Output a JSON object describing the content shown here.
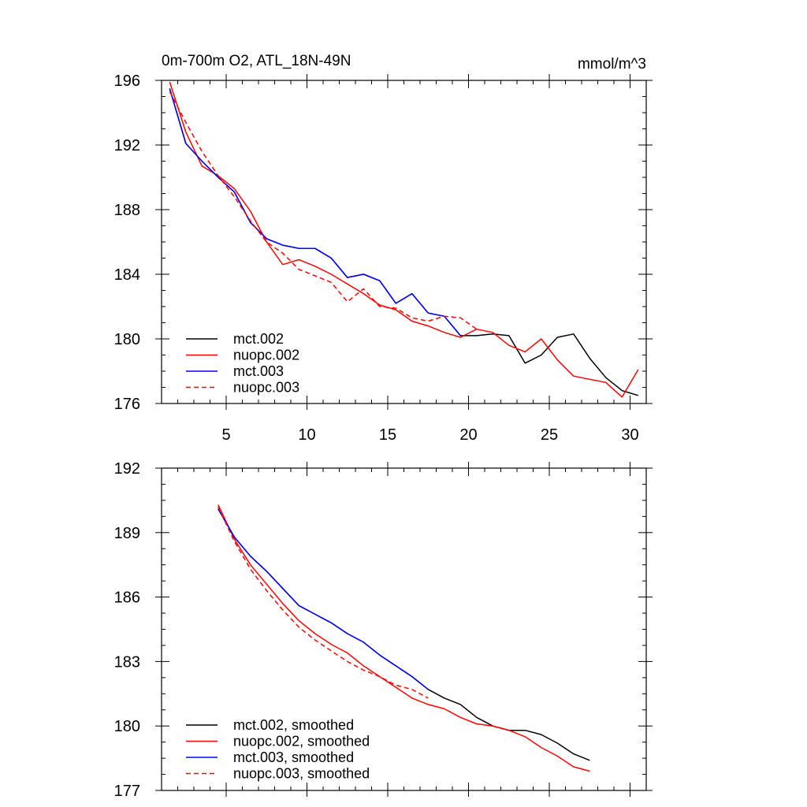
{
  "figure": {
    "title_left": "0m-700m O2, ATL_18N-49N",
    "title_right": "mmol/m^3"
  },
  "chart_data": [
    {
      "type": "line",
      "title": "",
      "xlabel": "",
      "ylabel": "",
      "xlim": [
        1,
        31
      ],
      "ylim": [
        176,
        196
      ],
      "xticks": [
        5,
        10,
        15,
        20,
        25,
        30
      ],
      "yticks": [
        176,
        180,
        184,
        188,
        192,
        196
      ],
      "legend_position": "bottom-left",
      "series": [
        {
          "name": "mct.002",
          "color": "#000000",
          "dash": "solid",
          "x": [
            1.5,
            2.5,
            3.5,
            4.5,
            5.5,
            6.5,
            7.5,
            8.5,
            9.5,
            10.5,
            11.5,
            12.5,
            13.5,
            14.5,
            15.5,
            16.5,
            17.5,
            18.5,
            19.5,
            20.5,
            21.5,
            22.5,
            23.5,
            24.5,
            25.5,
            26.5,
            27.5,
            28.5,
            29.5,
            30.5
          ],
          "y": [
            195.5,
            192.1,
            191.0,
            190.0,
            189.1,
            187.2,
            186.2,
            185.8,
            185.6,
            185.6,
            185.0,
            183.8,
            184.0,
            183.6,
            182.2,
            182.8,
            181.6,
            181.4,
            180.2,
            180.2,
            180.3,
            180.2,
            178.5,
            179.0,
            180.1,
            180.3,
            178.8,
            177.6,
            176.8,
            176.5
          ]
        },
        {
          "name": "nuopc.002",
          "color": "#ff0000",
          "dash": "solid",
          "x": [
            1.5,
            2.5,
            3.5,
            4.5,
            5.5,
            6.5,
            7.5,
            8.5,
            9.5,
            10.5,
            11.5,
            12.5,
            13.5,
            14.5,
            15.5,
            16.5,
            17.5,
            18.5,
            19.5,
            20.5,
            21.5,
            22.5,
            23.5,
            24.5,
            25.5,
            26.5,
            27.5,
            28.5,
            29.5,
            30.5
          ],
          "y": [
            195.9,
            192.8,
            190.7,
            190.1,
            189.3,
            187.9,
            186.0,
            184.6,
            184.9,
            184.5,
            184.0,
            183.4,
            182.8,
            182.1,
            181.8,
            181.1,
            180.8,
            180.4,
            180.1,
            180.6,
            180.4,
            179.6,
            179.2,
            180.0,
            178.7,
            177.7,
            177.5,
            177.3,
            176.4,
            178.1
          ]
        },
        {
          "name": "mct.003",
          "color": "#0000ff",
          "dash": "solid",
          "x": [
            1.5,
            2.5,
            3.5,
            4.5,
            5.5,
            6.5,
            7.5,
            8.5,
            9.5,
            10.5,
            11.5,
            12.5,
            13.5,
            14.5,
            15.5,
            16.5,
            17.5,
            18.5,
            19.5
          ],
          "y": [
            195.5,
            192.1,
            191.0,
            190.0,
            189.1,
            187.2,
            186.2,
            185.8,
            185.6,
            185.6,
            185.0,
            183.8,
            184.0,
            183.6,
            182.2,
            182.8,
            181.6,
            181.4,
            180.2
          ]
        },
        {
          "name": "nuopc.003",
          "color": "#ff0000",
          "dash": "dashed",
          "x": [
            1.5,
            2.5,
            3.5,
            4.5,
            5.5,
            6.5,
            7.5,
            8.5,
            9.5,
            10.5,
            11.5,
            12.5,
            13.5,
            14.5,
            15.5,
            16.5,
            17.5,
            18.5,
            19.5,
            20.5
          ],
          "y": [
            195.3,
            193.4,
            191.6,
            190.1,
            188.8,
            187.3,
            186.0,
            185.3,
            184.3,
            183.9,
            183.5,
            182.3,
            183.1,
            182.0,
            181.9,
            181.3,
            181.1,
            181.4,
            181.3,
            180.6
          ]
        }
      ]
    },
    {
      "type": "line",
      "title": "",
      "xlabel": "",
      "ylabel": "",
      "xlim": [
        1,
        31
      ],
      "ylim": [
        177,
        192
      ],
      "xticks": [
        5,
        10,
        15,
        20,
        25,
        30
      ],
      "yticks": [
        177,
        180,
        183,
        186,
        189,
        192
      ],
      "legend_position": "bottom-left",
      "series": [
        {
          "name": "mct.002, smoothed",
          "color": "#000000",
          "dash": "solid",
          "x": [
            4.5,
            5.5,
            6.5,
            7.5,
            8.5,
            9.5,
            10.5,
            11.5,
            12.5,
            13.5,
            14.5,
            15.5,
            16.5,
            17.5,
            18.5,
            19.5,
            20.5,
            21.5,
            22.5,
            23.5,
            24.5,
            25.5,
            26.5,
            27.5
          ],
          "y": [
            190.1,
            188.8,
            187.9,
            187.2,
            186.4,
            185.6,
            185.2,
            184.8,
            184.3,
            183.9,
            183.3,
            182.8,
            182.3,
            181.7,
            181.3,
            181.0,
            180.4,
            180.0,
            179.8,
            179.8,
            179.6,
            179.2,
            178.7,
            178.4
          ]
        },
        {
          "name": "nuopc.002, smoothed",
          "color": "#ff0000",
          "dash": "solid",
          "x": [
            4.5,
            5.5,
            6.5,
            7.5,
            8.5,
            9.5,
            10.5,
            11.5,
            12.5,
            13.5,
            14.5,
            15.5,
            16.5,
            17.5,
            18.5,
            19.5,
            20.5,
            21.5,
            22.5,
            23.5,
            24.5,
            25.5,
            26.5,
            27.5
          ],
          "y": [
            190.3,
            188.7,
            187.5,
            186.6,
            185.7,
            184.9,
            184.3,
            183.8,
            183.4,
            182.8,
            182.3,
            181.8,
            181.3,
            181.0,
            180.8,
            180.4,
            180.1,
            180.0,
            179.8,
            179.5,
            179.0,
            178.6,
            178.1,
            177.9
          ]
        },
        {
          "name": "mct.003, smoothed",
          "color": "#0000ff",
          "dash": "solid",
          "x": [
            4.5,
            5.5,
            6.5,
            7.5,
            8.5,
            9.5,
            10.5,
            11.5,
            12.5,
            13.5,
            14.5,
            15.5,
            16.5,
            17.5
          ],
          "y": [
            190.1,
            188.8,
            187.9,
            187.2,
            186.4,
            185.6,
            185.2,
            184.8,
            184.3,
            183.9,
            183.3,
            182.8,
            182.3,
            181.7
          ]
        },
        {
          "name": "nuopc.003, smoothed",
          "color": "#ff0000",
          "dash": "dashed",
          "x": [
            4.5,
            5.5,
            6.5,
            7.5,
            8.5,
            9.5,
            10.5,
            11.5,
            12.5,
            13.5,
            14.5,
            15.5,
            16.5,
            17.5
          ],
          "y": [
            190.2,
            188.6,
            187.3,
            186.3,
            185.4,
            184.6,
            184.0,
            183.5,
            183.0,
            182.6,
            182.3,
            181.9,
            181.7,
            181.3
          ]
        }
      ]
    }
  ]
}
